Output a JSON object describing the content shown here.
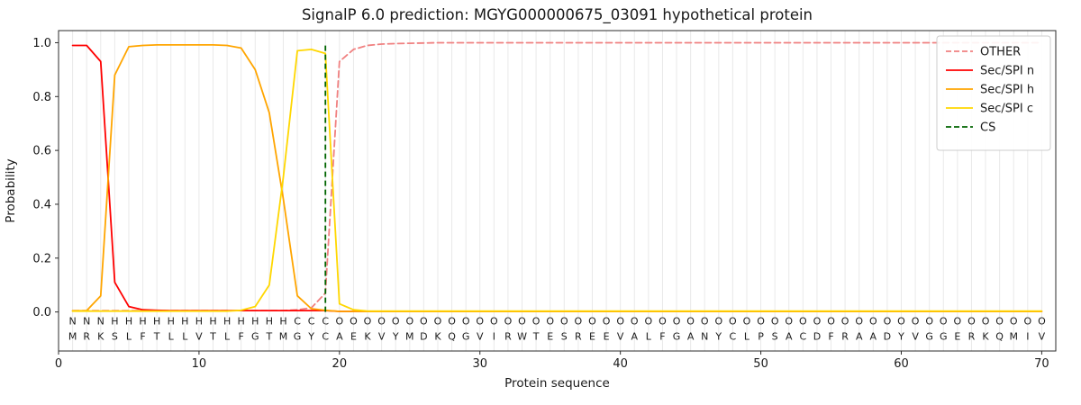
{
  "chart_data": {
    "type": "line",
    "title": "SignalP 6.0 prediction: MGYG000000675_03091 hypothetical protein",
    "xlabel": "Protein sequence",
    "ylabel": "Probability",
    "xlim": [
      0,
      71
    ],
    "ylim": [
      -0.145,
      1.045
    ],
    "xticks": [
      0,
      10,
      20,
      30,
      40,
      50,
      60,
      70
    ],
    "yticks": [
      0,
      0.2,
      0.4,
      0.6,
      0.8,
      1
    ],
    "grid": "light vertical gridline at every residue position",
    "legend_position": "upper right",
    "sequence": "MRKSLFTLLVTLFGTMGYCAEKVYMDKQGVIRWTESREEVALFGANYCLPSACDFRAADYVGGERKQMIV",
    "region_labels": "NNNHHHHHHHHHHHHHCCCOOOOOOOOOOOOOOOOOOOOOOOOOOOOOOOOOOOOOOOOOOOOOOOOOO",
    "region_colors": {
      "N": "#ff0000",
      "H": "#ffa500",
      "C": "#ffd700",
      "O": "#8c8c8c"
    },
    "sequence_color": "#1a1a1a",
    "cs": {
      "label": "CS",
      "x": 19,
      "color": "#006400",
      "dash": true
    },
    "series": [
      {
        "name": "OTHER",
        "color": "#f08080",
        "dash": true,
        "values": [
          0.005,
          0.005,
          0.005,
          0.005,
          0.005,
          0.005,
          0.005,
          0.005,
          0.005,
          0.005,
          0.005,
          0.005,
          0.005,
          0.005,
          0.005,
          0.005,
          0.008,
          0.015,
          0.07,
          0.93,
          0.975,
          0.99,
          0.995,
          0.997,
          0.998,
          0.999,
          1,
          1,
          1,
          1,
          1,
          1,
          1,
          1,
          1,
          1,
          1,
          1,
          1,
          1,
          1,
          1,
          1,
          1,
          1,
          1,
          1,
          1,
          1,
          1,
          1,
          1,
          1,
          1,
          1,
          1,
          1,
          1,
          1,
          1,
          1,
          1,
          1,
          1,
          1,
          1,
          1,
          1,
          1,
          1
        ]
      },
      {
        "name": "Sec/SPI n",
        "color": "#ff0000",
        "dash": false,
        "values": [
          0.99,
          0.99,
          0.93,
          0.11,
          0.02,
          0.008,
          0.006,
          0.005,
          0.005,
          0.005,
          0.005,
          0.005,
          0.005,
          0.005,
          0.005,
          0.005,
          0.005,
          0.005,
          0.005,
          0.002,
          0.002,
          0.002,
          0.002,
          0.002,
          0.002,
          0.002,
          0.002,
          0.002,
          0.002,
          0.002,
          0.002,
          0.002,
          0.002,
          0.002,
          0.002,
          0.002,
          0.002,
          0.002,
          0.002,
          0.002,
          0.002,
          0.002,
          0.002,
          0.002,
          0.002,
          0.002,
          0.002,
          0.002,
          0.002,
          0.002,
          0.002,
          0.002,
          0.002,
          0.002,
          0.002,
          0.002,
          0.002,
          0.002,
          0.002,
          0.002,
          0.002,
          0.002,
          0.002,
          0.002,
          0.002,
          0.002,
          0.002,
          0.002,
          0.002,
          0.002
        ]
      },
      {
        "name": "Sec/SPI h",
        "color": "#ffa500",
        "dash": false,
        "values": [
          0.004,
          0.005,
          0.06,
          0.88,
          0.985,
          0.99,
          0.992,
          0.992,
          0.992,
          0.992,
          0.992,
          0.99,
          0.98,
          0.9,
          0.74,
          0.42,
          0.06,
          0.012,
          0.006,
          0.002,
          0.002,
          0.002,
          0.002,
          0.002,
          0.002,
          0.002,
          0.002,
          0.002,
          0.002,
          0.002,
          0.002,
          0.002,
          0.002,
          0.002,
          0.002,
          0.002,
          0.002,
          0.002,
          0.002,
          0.002,
          0.002,
          0.002,
          0.002,
          0.002,
          0.002,
          0.002,
          0.002,
          0.002,
          0.002,
          0.002,
          0.002,
          0.002,
          0.002,
          0.002,
          0.002,
          0.002,
          0.002,
          0.002,
          0.002,
          0.002,
          0.002,
          0.002,
          0.002,
          0.002,
          0.002,
          0.002,
          0.002,
          0.002,
          0.002,
          0.002
        ]
      },
      {
        "name": "Sec/SPI c",
        "color": "#ffd700",
        "dash": false,
        "values": [
          0.003,
          0.003,
          0.003,
          0.003,
          0.003,
          0.003,
          0.003,
          0.003,
          0.003,
          0.003,
          0.003,
          0.003,
          0.006,
          0.02,
          0.1,
          0.5,
          0.97,
          0.975,
          0.96,
          0.03,
          0.008,
          0.003,
          0.003,
          0.003,
          0.003,
          0.003,
          0.003,
          0.003,
          0.003,
          0.003,
          0.003,
          0.003,
          0.003,
          0.003,
          0.003,
          0.003,
          0.003,
          0.003,
          0.003,
          0.003,
          0.003,
          0.003,
          0.003,
          0.003,
          0.003,
          0.003,
          0.003,
          0.003,
          0.003,
          0.003,
          0.003,
          0.003,
          0.003,
          0.003,
          0.003,
          0.003,
          0.003,
          0.003,
          0.003,
          0.003,
          0.003,
          0.003,
          0.003,
          0.003,
          0.003,
          0.003,
          0.003,
          0.003,
          0.003,
          0.003
        ]
      }
    ]
  }
}
